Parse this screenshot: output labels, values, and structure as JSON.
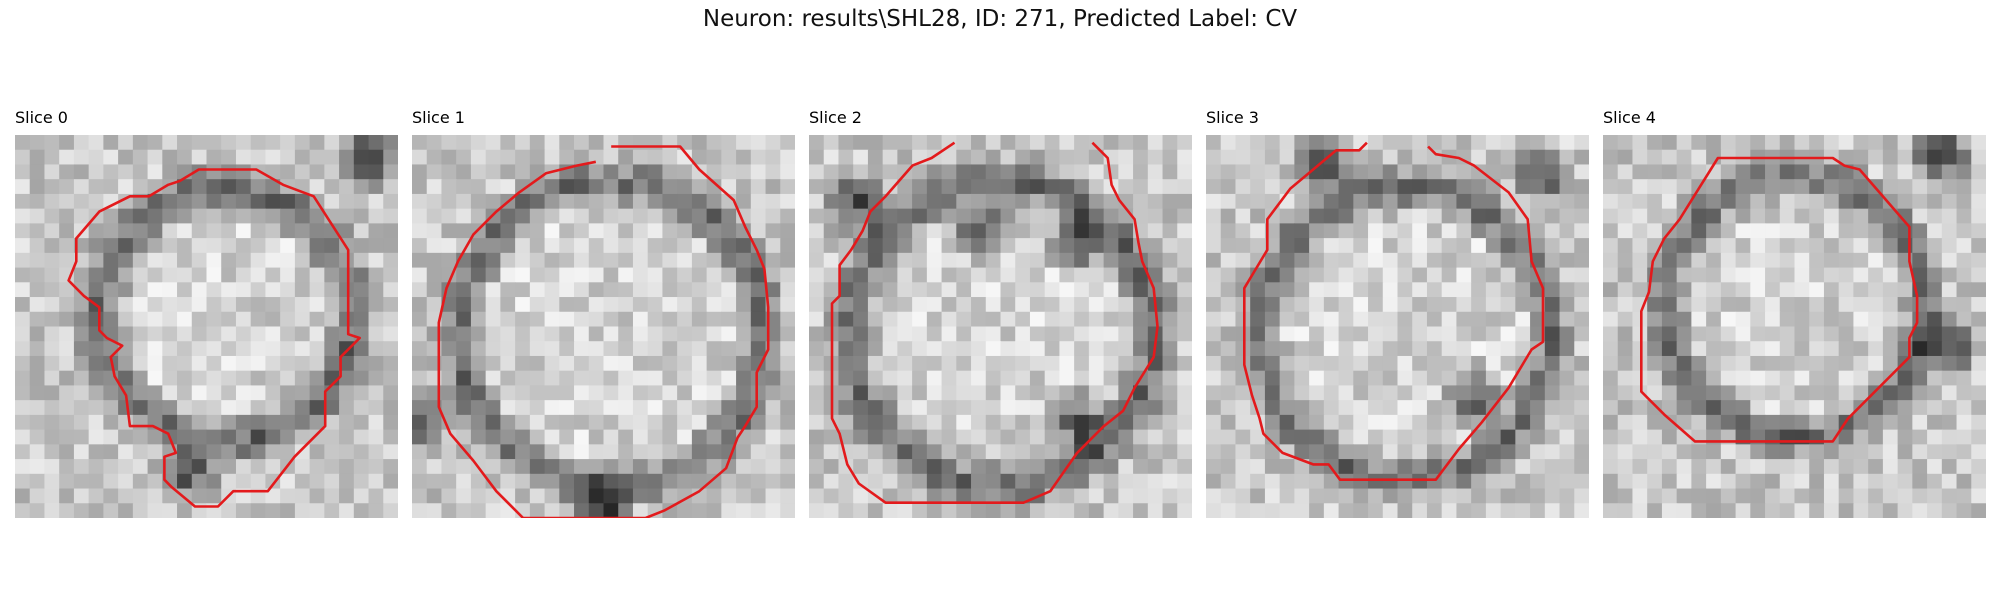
{
  "figure": {
    "title": "Neuron: results\\SHL28, ID: 271, Predicted Label: CV",
    "outline_color": "#e31a1c",
    "colormap": "grayscale",
    "slices": [
      {
        "label": "Slice 0"
      },
      {
        "label": "Slice 1"
      },
      {
        "label": "Slice 2"
      },
      {
        "label": "Slice 3"
      },
      {
        "label": "Slice 4"
      }
    ]
  }
}
